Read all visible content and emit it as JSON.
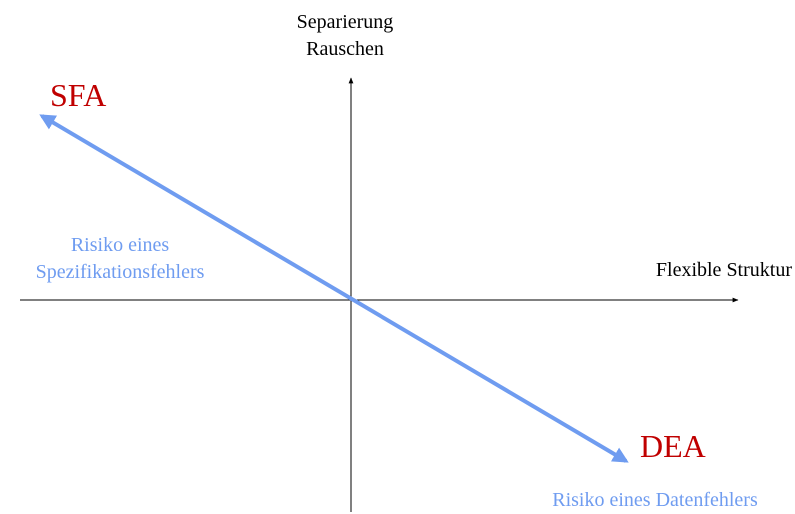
{
  "vertical_axis": {
    "lines": [
      "Separierung",
      "Rauschen"
    ]
  },
  "horizontal_axis": {
    "label": "Flexible Struktur"
  },
  "methods": {
    "top_left": "SFA",
    "bottom_right": "DEA"
  },
  "risks": {
    "left": [
      "Risiko eines",
      "Spezifikationsfehlers"
    ],
    "bottom_right": "Risiko eines Datenfehlers"
  }
}
